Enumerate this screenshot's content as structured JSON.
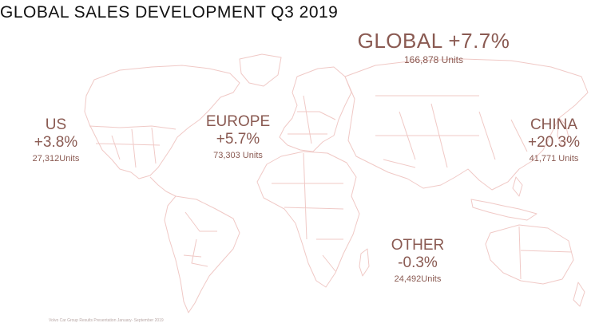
{
  "title": "GLOBAL SALES DEVELOPMENT Q3 2019",
  "accent_color": "#8a5a52",
  "map_line_color": "#f0c9c6",
  "global": {
    "label": "GLOBAL +7.7%",
    "units": "166,878 Units"
  },
  "regions": [
    {
      "id": "us",
      "name": "US",
      "change": "+3.8%",
      "units": "27,312Units"
    },
    {
      "id": "europe",
      "name": "EUROPE",
      "change": "+5.7%",
      "units": "73,303 Units"
    },
    {
      "id": "china",
      "name": "CHINA",
      "change": "+20.3%",
      "units": "41,771 Units"
    },
    {
      "id": "other",
      "name": "OTHER",
      "change": "-0.3%",
      "units": "24,492Units"
    }
  ],
  "footer": "Volvo Car Group Results Presentation January- September 2019"
}
